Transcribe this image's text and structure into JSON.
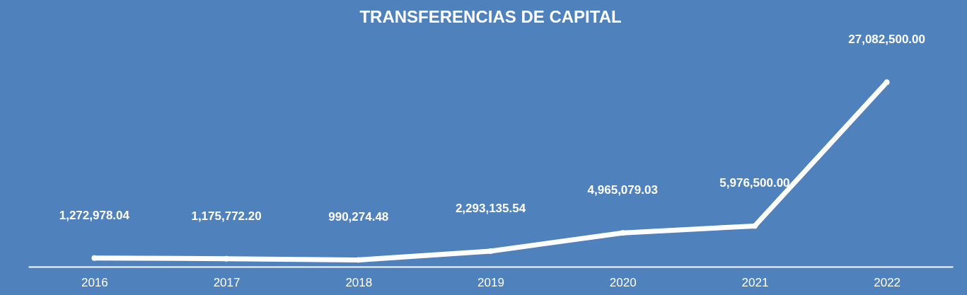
{
  "chart_data": {
    "type": "line",
    "title": "TRANSFERENCIAS DE CAPITAL",
    "categories": [
      "2016",
      "2017",
      "2018",
      "2019",
      "2020",
      "2021",
      "2022"
    ],
    "series": [
      {
        "color": "#ffffff",
        "values": [
          1272978.04,
          1175772.2,
          990274.48,
          2293135.54,
          4965079.03,
          5976500.0,
          27082500.0
        ],
        "value_labels": [
          "1,272,978.04",
          "1,175,772.20",
          "990,274.48",
          "2,293,135.54",
          "4,965,079.03",
          "5,976,500.00",
          "27,082,500.00"
        ]
      }
    ],
    "marker": "circle",
    "line_style": "solid",
    "grid": false
  }
}
